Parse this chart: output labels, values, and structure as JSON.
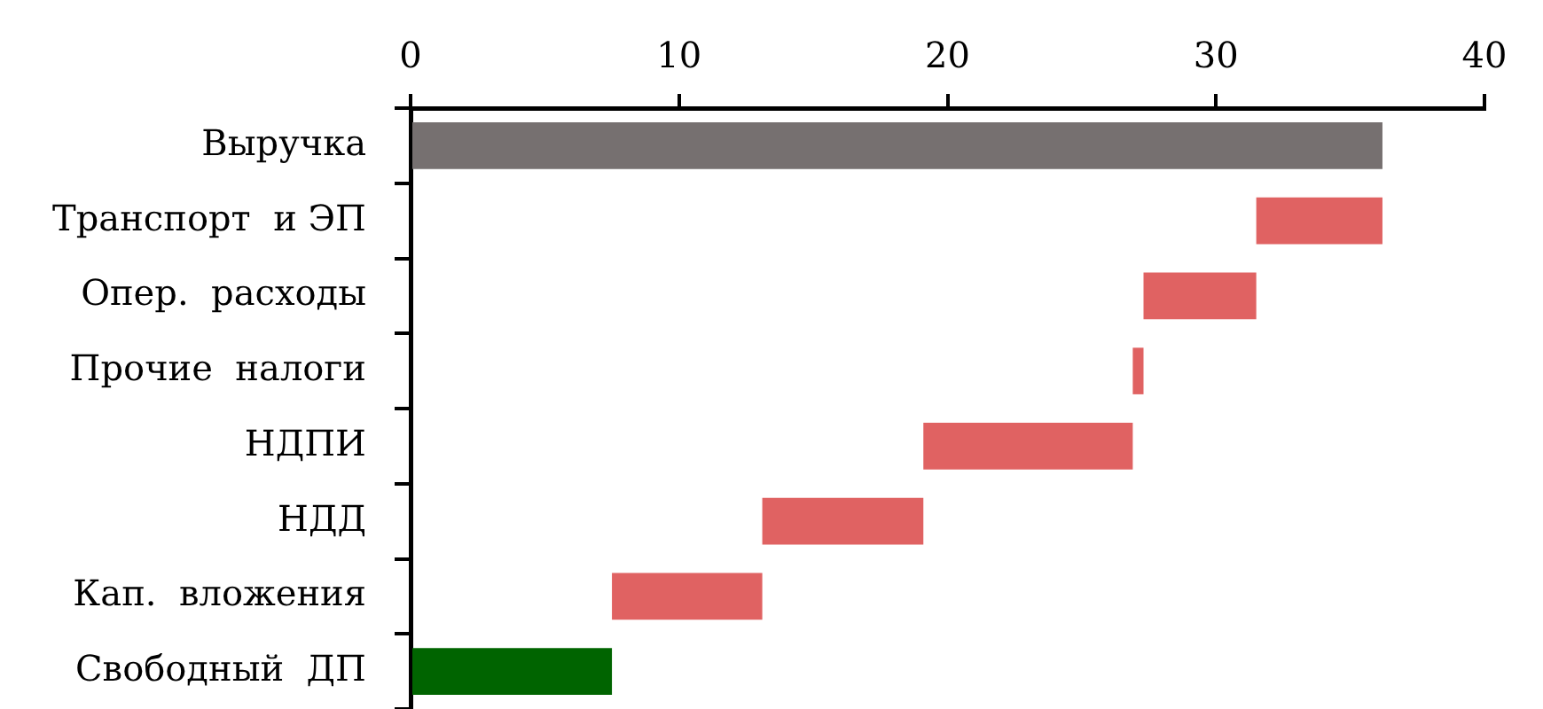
{
  "chart_data": {
    "type": "bar",
    "orientation": "horizontal",
    "categories": [
      "Выручка",
      "Транспорт  и ЭП",
      "Опер.  расходы",
      "Прочие  налоги",
      "НДПИ",
      "НДД",
      "Кап.  вложения",
      "Свободный  ДП"
    ],
    "base": [
      0,
      31.5,
      27.3,
      26.9,
      19.1,
      13.1,
      7.5,
      0
    ],
    "values": [
      36.2,
      4.7,
      4.2,
      0.4,
      7.8,
      6.0,
      5.6,
      7.5
    ],
    "colors": [
      "#767070",
      "#e06262",
      "#e06262",
      "#e06262",
      "#e06262",
      "#e06262",
      "#e06262",
      "#006400"
    ],
    "xlim": [
      0,
      40
    ],
    "xticks": [
      0,
      10,
      20,
      30,
      40
    ]
  }
}
